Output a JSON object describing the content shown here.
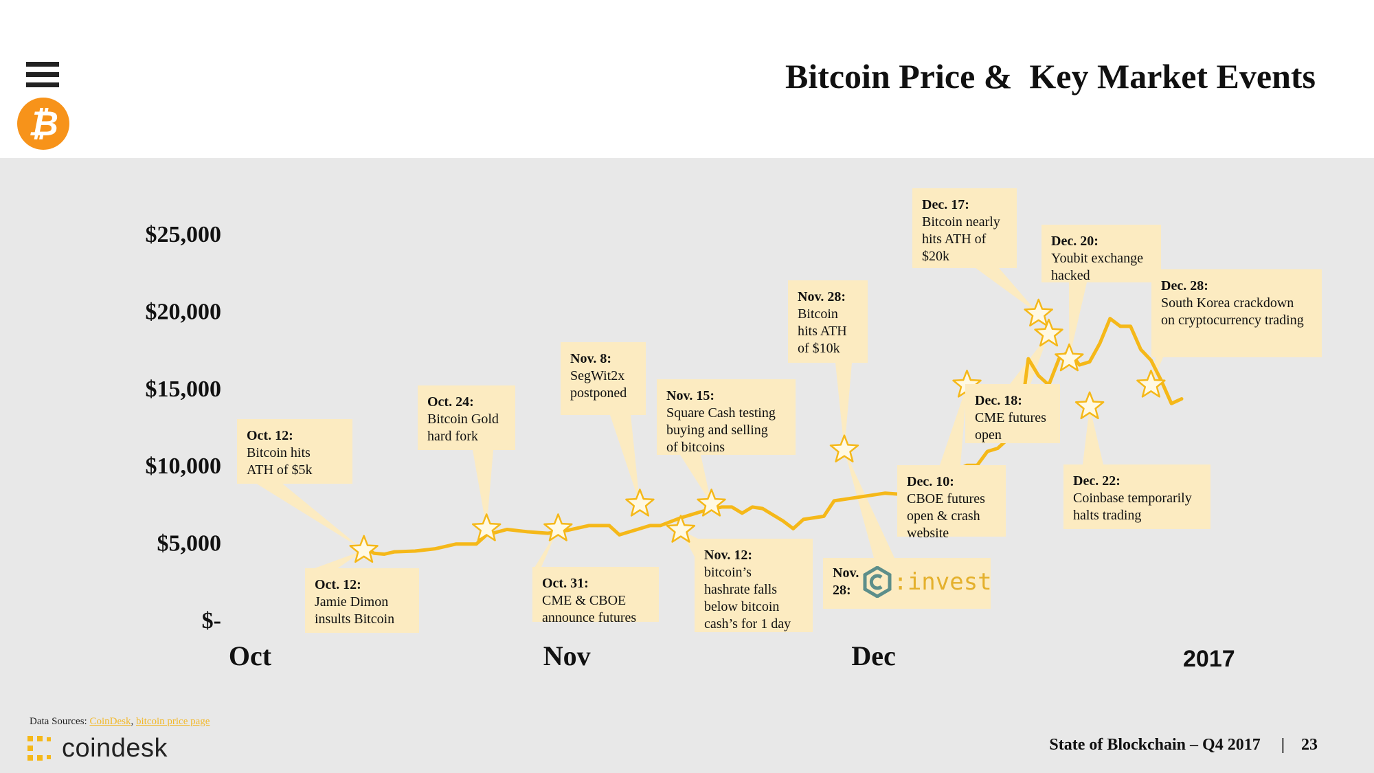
{
  "header": {
    "title": "Bitcoin Price &  Key Market Events",
    "menu_icon": "hamburger-menu-icon",
    "brand_icon": "bitcoin-logo-icon"
  },
  "colors": {
    "line": "#f5b819",
    "callout_bg": "#fcebc1",
    "chart_bg": "#e8e8e8",
    "bitcoin_orange": "#f7931a",
    "link": "#f2b82a"
  },
  "chart_data": {
    "type": "line",
    "title": "Bitcoin Price &  Key Market Events",
    "x_ticks": [
      "Oct",
      "Nov",
      "Dec"
    ],
    "x_annotation": "2017",
    "y_ticks": [
      "$-",
      "$5,000",
      "$10,000",
      "$15,000",
      "$20,000",
      "$25,000"
    ],
    "ylim": [
      0,
      25000
    ],
    "xlim": [
      "2017-10-01",
      "2017-12-31"
    ],
    "grid": false,
    "series": [
      {
        "values": [
          [
            "2017-10-12",
            4700
          ],
          [
            "2017-10-13",
            4300
          ],
          [
            "2017-10-14",
            4250
          ],
          [
            "2017-10-15",
            4400
          ],
          [
            "2017-10-17",
            4450
          ],
          [
            "2017-10-19",
            4600
          ],
          [
            "2017-10-21",
            4900
          ],
          [
            "2017-10-23",
            4900
          ],
          [
            "2017-10-24",
            5500
          ],
          [
            "2017-10-26",
            5850
          ],
          [
            "2017-10-28",
            5700
          ],
          [
            "2017-10-30",
            5600
          ],
          [
            "2017-11-01",
            5800
          ],
          [
            "2017-11-03",
            6100
          ],
          [
            "2017-11-05",
            6100
          ],
          [
            "2017-11-06",
            5500
          ],
          [
            "2017-11-08",
            5900
          ],
          [
            "2017-11-09",
            6100
          ],
          [
            "2017-11-10",
            6100
          ],
          [
            "2017-11-12",
            6600
          ],
          [
            "2017-11-14",
            7000
          ],
          [
            "2017-11-16",
            7300
          ],
          [
            "2017-11-17",
            7300
          ],
          [
            "2017-11-18",
            6900
          ],
          [
            "2017-11-19",
            7300
          ],
          [
            "2017-11-20",
            7200
          ],
          [
            "2017-11-21",
            6800
          ],
          [
            "2017-11-22",
            6400
          ],
          [
            "2017-11-23",
            5900
          ],
          [
            "2017-11-24",
            6500
          ],
          [
            "2017-11-26",
            6700
          ],
          [
            "2017-11-27",
            7700
          ],
          [
            "2017-11-28",
            7800
          ],
          [
            "2017-11-30",
            8000
          ],
          [
            "2017-12-02",
            8200
          ],
          [
            "2017-12-04",
            8100
          ],
          [
            "2017-12-05",
            8400
          ],
          [
            "2017-12-06",
            8200
          ],
          [
            "2017-12-08",
            9000
          ],
          [
            "2017-12-09",
            9700
          ],
          [
            "2017-12-10",
            10000
          ],
          [
            "2017-12-11",
            10000
          ],
          [
            "2017-12-12",
            10900
          ],
          [
            "2017-12-13",
            11100
          ],
          [
            "2017-12-14",
            11700
          ],
          [
            "2017-12-15",
            11800
          ],
          [
            "2017-12-16",
            16900
          ],
          [
            "2017-12-17",
            15800
          ],
          [
            "2017-12-18",
            15200
          ],
          [
            "2017-12-19",
            16900
          ],
          [
            "2017-12-20",
            17400
          ],
          [
            "2017-12-21",
            16500
          ],
          [
            "2017-12-22",
            16700
          ],
          [
            "2017-12-23",
            17900
          ],
          [
            "2017-12-24",
            19500
          ],
          [
            "2017-12-25",
            19000
          ],
          [
            "2017-12-26",
            19000
          ],
          [
            "2017-12-27",
            17500
          ],
          [
            "2017-12-28",
            16800
          ],
          [
            "2017-12-29",
            15500
          ],
          [
            "2017-12-30",
            14000
          ],
          [
            "2017-12-31",
            14300
          ]
        ]
      }
    ],
    "events": [
      {
        "date": "2017-10-12",
        "value": 4500
      },
      {
        "date": "2017-10-24",
        "value": 5900
      },
      {
        "date": "2017-10-31",
        "value": 5900
      },
      {
        "date": "2017-11-08",
        "value": 7500
      },
      {
        "date": "2017-11-12",
        "value": 5800
      },
      {
        "date": "2017-11-15",
        "value": 7500
      },
      {
        "date": "2017-11-28",
        "value": 11000
      },
      {
        "date": "2017-12-10",
        "value": 15200
      },
      {
        "date": "2017-12-17",
        "value": 19800
      },
      {
        "date": "2017-12-18",
        "value": 18500
      },
      {
        "date": "2017-12-20",
        "value": 16900
      },
      {
        "date": "2017-12-22",
        "value": 13800
      },
      {
        "date": "2017-12-28",
        "value": 15200
      }
    ]
  },
  "callouts": [
    {
      "id": "oct12a",
      "date": "Oct. 12:",
      "text": "Bitcoin hits\nATH of $5k"
    },
    {
      "id": "oct12b",
      "date": "Oct. 12:",
      "text": "Jamie Dimon\ninsults Bitcoin"
    },
    {
      "id": "oct24",
      "date": "Oct. 24:",
      "text": "Bitcoin Gold\nhard fork"
    },
    {
      "id": "oct31",
      "date": "Oct. 31:",
      "text": "CME & CBOE\nannounce futures"
    },
    {
      "id": "nov8",
      "date": "Nov. 8:",
      "text": "SegWit2x\npostponed"
    },
    {
      "id": "nov15",
      "date": "Nov. 15:",
      "text": "Square Cash testing\nbuying and selling\nof bitcoins"
    },
    {
      "id": "nov12",
      "date": "Nov. 12:",
      "text": "bitcoin’s\nhashrate falls\nbelow bitcoin\ncash’s for 1 day"
    },
    {
      "id": "nov28a",
      "date": "Nov. 28:",
      "text": "Bitcoin\nhits ATH\nof  $10k"
    },
    {
      "id": "nov28b",
      "date": "Nov. 28:",
      "text": ""
    },
    {
      "id": "dec10",
      "date": "Dec. 10:",
      "text": "CBOE futures\nopen & crash\nwebsite"
    },
    {
      "id": "dec17",
      "date": "Dec. 17:",
      "text": "Bitcoin nearly\nhits ATH of\n$20k"
    },
    {
      "id": "dec18",
      "date": "Dec. 18:",
      "text": "CME futures\nopen"
    },
    {
      "id": "dec20",
      "date": "Dec. 20:",
      "text": "Youbit exchange\nhacked"
    },
    {
      "id": "dec22",
      "date": "Dec. 22:",
      "text": "Coinbase temporarily\nhalts trading"
    },
    {
      "id": "dec28",
      "date": "Dec. 28:",
      "text": "South Korea crackdown\non cryptocurrency trading"
    }
  ],
  "invest_logo": {
    "word": ":invest",
    "icon": "cinvest-logo-icon"
  },
  "footer": {
    "sources_label": "Data Sources: ",
    "source_1": "CoinDesk",
    "source_sep": ", ",
    "source_2": "bitcoin price page",
    "brand": "coindesk",
    "brand_icon": "coindesk-logo-icon",
    "report": "State of Blockchain – Q4 2017",
    "separator": "|",
    "page_number": "23"
  }
}
